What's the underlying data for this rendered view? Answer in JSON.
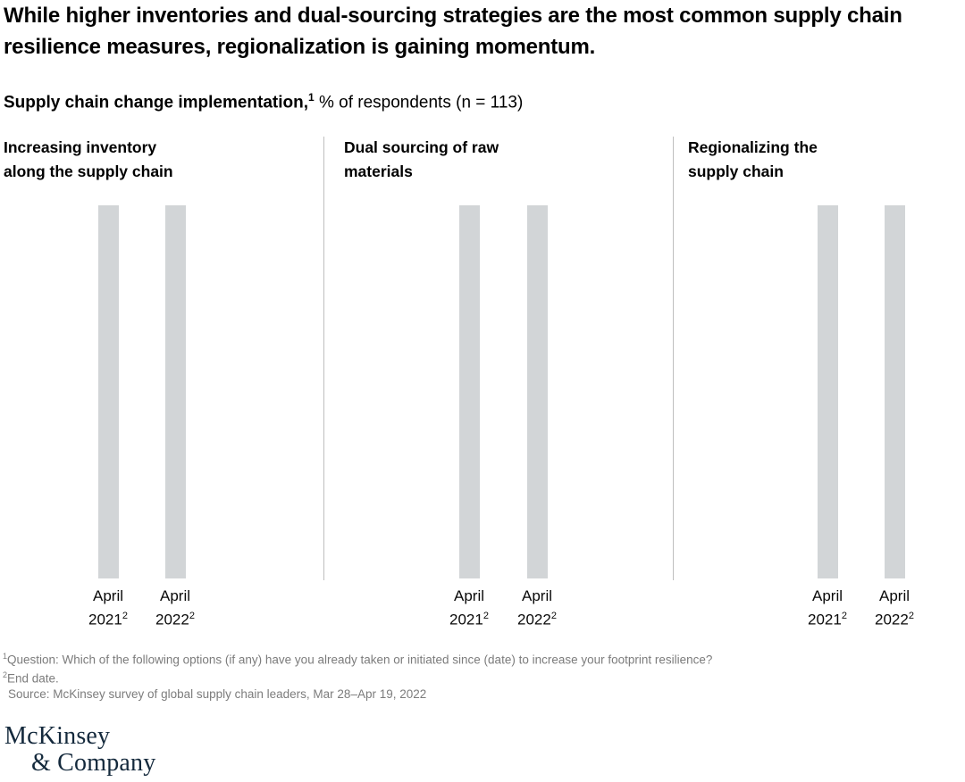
{
  "header": {
    "title": "While higher inventories and dual-sourcing strategies are the most common supply chain resilience measures, regionalization is gaining momentum.",
    "subtitle": {
      "bold": "Supply chain change implementation,",
      "sup": "1",
      "rest": " % of respondents (n = 113)"
    }
  },
  "chart_data": {
    "type": "bar",
    "title": "Supply chain change implementation, % of respondents (n = 113)",
    "n": 113,
    "value_labels_shown": false,
    "bar_color": "#d2d5d7",
    "note": "All six bars render at equal full height in light gray (placeholder/loading state); no numeric values, axes, or gridlines are visible in the image.",
    "panels": [
      {
        "heading_lines": [
          "Increasing inventory",
          "along the supply chain"
        ],
        "categories": [
          "April 2021",
          "April 2022"
        ],
        "category_footnote": "2",
        "rendered_height_pct": [
          100,
          100
        ],
        "bars": [
          {
            "line1": "April",
            "year": "2021",
            "sup": "2"
          },
          {
            "line1": "April",
            "year": "2022",
            "sup": "2"
          }
        ]
      },
      {
        "heading_lines": [
          "Dual sourcing of raw",
          "materials"
        ],
        "categories": [
          "April 2021",
          "April 2022"
        ],
        "category_footnote": "2",
        "rendered_height_pct": [
          100,
          100
        ],
        "bars": [
          {
            "line1": "April",
            "year": "2021",
            "sup": "2"
          },
          {
            "line1": "April",
            "year": "2022",
            "sup": "2"
          }
        ]
      },
      {
        "heading_lines": [
          "Regionalizing the",
          "supply chain"
        ],
        "categories": [
          "April 2021",
          "April 2022"
        ],
        "category_footnote": "2",
        "rendered_height_pct": [
          100,
          100
        ],
        "bars": [
          {
            "line1": "April",
            "year": "2021",
            "sup": "2"
          },
          {
            "line1": "April",
            "year": "2022",
            "sup": "2"
          }
        ]
      }
    ]
  },
  "footnotes": [
    {
      "sup": "1",
      "text": "Question: Which of the following options (if any) have you already taken or initiated since (date) to increase your footprint resilience?"
    },
    {
      "sup": "2",
      "text": "End date."
    },
    {
      "sup": "",
      "text": "Source: McKinsey survey of global supply chain leaders, Mar 28–Apr 19, 2022"
    }
  ],
  "logo": {
    "line1": "McKinsey",
    "line2": "& Company"
  },
  "colors": {
    "bar": "#d2d5d7",
    "divider": "#bfbfbf",
    "footnote_text": "#7c7c7c",
    "logo_navy": "#14293c"
  }
}
